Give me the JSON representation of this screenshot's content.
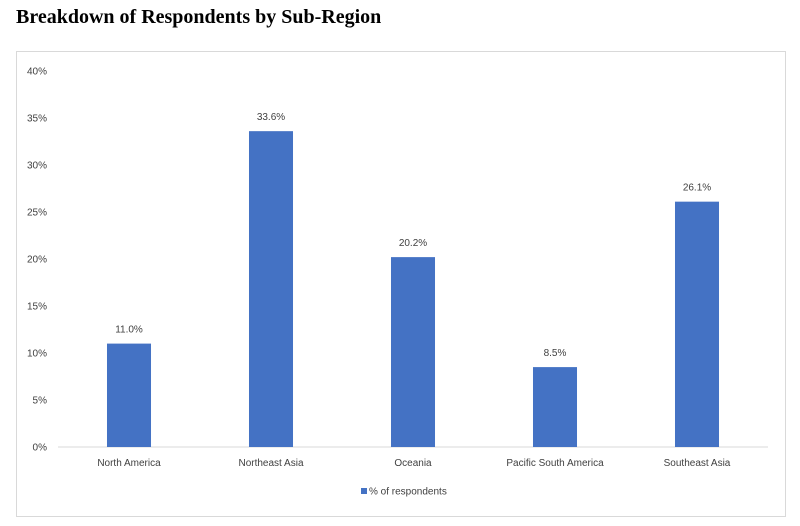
{
  "page": {
    "title": "Breakdown of Respondents by Sub-Region"
  },
  "chart_data": {
    "type": "bar",
    "title": "",
    "xlabel": "",
    "ylabel": "",
    "categories": [
      "North America",
      "Northeast Asia",
      "Oceania",
      "Pacific South America",
      "Southeast Asia"
    ],
    "series": [
      {
        "name": "% of respondents",
        "values": [
          11.0,
          33.6,
          20.2,
          8.5,
          26.1
        ],
        "color": "#4472c4"
      }
    ],
    "data_labels": [
      "11.0%",
      "33.6%",
      "20.2%",
      "8.5%",
      "26.1%"
    ],
    "ylim": [
      0,
      40
    ],
    "y_ticks": [
      0,
      5,
      10,
      15,
      20,
      25,
      30,
      35,
      40
    ],
    "y_tick_labels": [
      "0%",
      "5%",
      "10%",
      "15%",
      "20%",
      "25%",
      "30%",
      "35%",
      "40%"
    ],
    "grid": false,
    "legend": {
      "position": "bottom",
      "entries": [
        "% of respondents"
      ]
    }
  }
}
